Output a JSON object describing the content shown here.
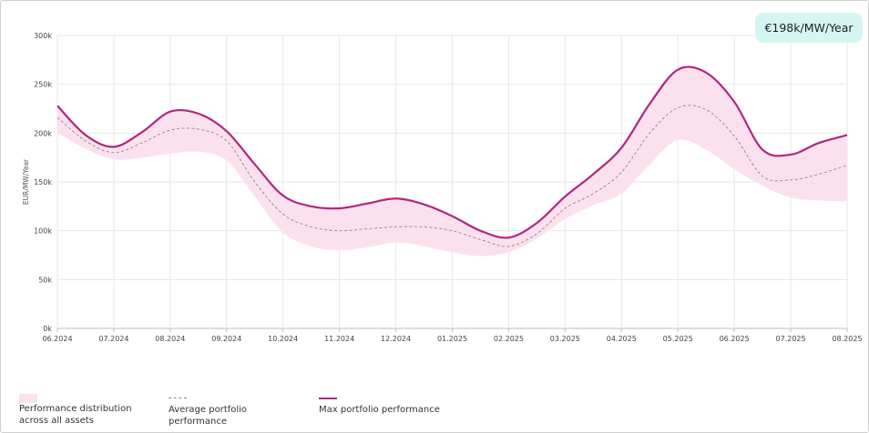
{
  "badge": {
    "text": "€198k/MW/Year"
  },
  "legend": {
    "band": "Performance distribution across all assets",
    "average": "Average portfolio performance",
    "max": "Max portfolio performance"
  },
  "colors": {
    "max_line": "#b0277e",
    "band_fill": "#fbe1ee",
    "avg_line": "#8a8a8a",
    "grid": "#e6e6e6",
    "badge_bg": "#d5f5f2"
  },
  "chart_data": {
    "type": "line",
    "title": "",
    "xlabel": "",
    "ylabel": "EUR/MW/Year",
    "ylim": [
      0,
      300000
    ],
    "yticks": [
      {
        "value": 0,
        "label": "0k"
      },
      {
        "value": 50000,
        "label": "50k"
      },
      {
        "value": 100000,
        "label": "100k"
      },
      {
        "value": 150000,
        "label": "150k"
      },
      {
        "value": 200000,
        "label": "200k"
      },
      {
        "value": 250000,
        "label": "250k"
      },
      {
        "value": 300000,
        "label": "300k"
      }
    ],
    "categories": [
      "06.2024",
      "07.2024",
      "08.2024",
      "09.2024",
      "10.2024",
      "11.2024",
      "12.2024",
      "01.2025",
      "02.2025",
      "03.2025",
      "04.2025",
      "05.2025",
      "06.2025",
      "07.2025",
      "08.2025"
    ],
    "x": [
      0,
      0.5,
      1,
      1.5,
      2,
      2.5,
      3,
      3.5,
      4,
      4.5,
      5,
      5.5,
      6,
      6.5,
      7,
      7.5,
      8,
      8.5,
      9,
      9.5,
      10,
      10.5,
      11,
      11.5,
      12,
      12.5,
      13,
      13.5,
      14
    ],
    "series": [
      {
        "name": "Max portfolio performance",
        "style": "solid",
        "values": [
          228000,
          198000,
          186000,
          201000,
          222000,
          220000,
          202000,
          168000,
          136000,
          125000,
          123000,
          128000,
          133000,
          127000,
          115000,
          100000,
          93000,
          108000,
          135000,
          158000,
          185000,
          230000,
          265000,
          262000,
          232000,
          183000,
          178000,
          190000,
          198000
        ]
      },
      {
        "name": "Average portfolio performance",
        "style": "dashed",
        "values": [
          216000,
          192000,
          180000,
          190000,
          203000,
          204000,
          192000,
          150000,
          117000,
          104000,
          100000,
          102000,
          104000,
          104000,
          100000,
          91000,
          84000,
          97000,
          123000,
          138000,
          160000,
          200000,
          226000,
          224000,
          197000,
          156000,
          152000,
          158000,
          167000
        ]
      },
      {
        "name": "Performance distribution across all assets",
        "style": "band",
        "lower": [
          200000,
          184000,
          173000,
          175000,
          179000,
          181000,
          172000,
          135000,
          98000,
          84000,
          80000,
          83000,
          88000,
          84000,
          78000,
          74000,
          78000,
          92000,
          112000,
          126000,
          138000,
          168000,
          193000,
          183000,
          163000,
          146000,
          134000,
          131000,
          130000
        ],
        "upper": [
          228000,
          198000,
          186000,
          201000,
          222000,
          220000,
          202000,
          168000,
          136000,
          125000,
          123000,
          128000,
          133000,
          127000,
          115000,
          100000,
          93000,
          108000,
          135000,
          158000,
          185000,
          230000,
          265000,
          262000,
          232000,
          183000,
          178000,
          190000,
          198000
        ]
      }
    ],
    "grid": true,
    "legend_position": "bottom-left"
  }
}
